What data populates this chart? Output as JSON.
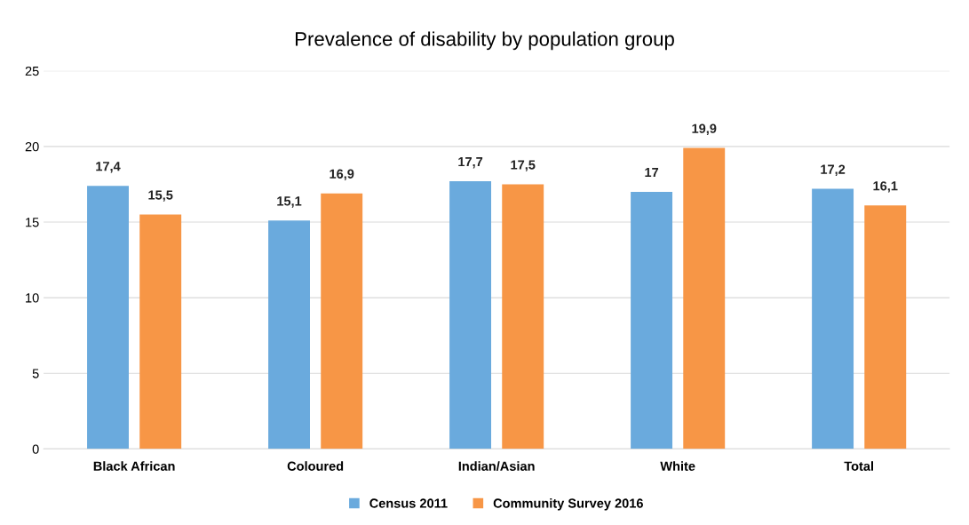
{
  "chart_data": {
    "type": "bar",
    "title": "Prevalence of disability by population group",
    "categories": [
      "Black African",
      "Coloured",
      "Indian/Asian",
      "White",
      "Total"
    ],
    "series": [
      {
        "name": "Census 2011",
        "color": "#6aaadd",
        "values": [
          17.4,
          15.1,
          17.7,
          17,
          17.2
        ],
        "value_labels": [
          "17,4",
          "15,1",
          "17,7",
          "17",
          "17,2"
        ]
      },
      {
        "name": "Community Survey 2016",
        "color": "#f79646",
        "values": [
          15.5,
          16.9,
          17.5,
          19.9,
          16.1
        ],
        "value_labels": [
          "15,5",
          "16,9",
          "17,5",
          "19,9",
          "16,1"
        ]
      }
    ],
    "ylim": [
      0,
      25
    ],
    "yticks": [
      0,
      5,
      10,
      15,
      20,
      25
    ],
    "grid": "y",
    "legend": "bottom"
  }
}
